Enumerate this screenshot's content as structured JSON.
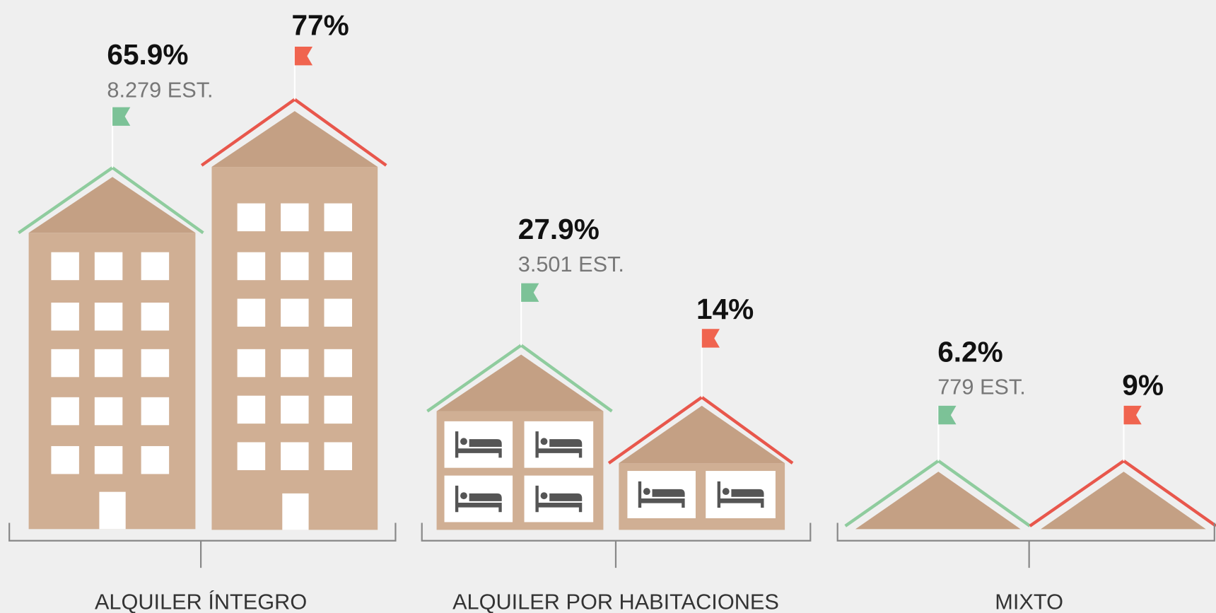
{
  "groups": [
    {
      "label": "ALQUILER ÍNTEGRO",
      "items": [
        {
          "value": "65.9%",
          "count": "8.279 EST."
        },
        {
          "value": "77%"
        }
      ]
    },
    {
      "label": "ALQUILER POR HABITACIONES",
      "items": [
        {
          "value": "27.9%",
          "count": "3.501 EST."
        },
        {
          "value": "14%"
        }
      ]
    },
    {
      "label": "MIXTO",
      "items": [
        {
          "value": "6.2%",
          "count": "779 EST."
        },
        {
          "value": "9%"
        }
      ]
    }
  ]
}
